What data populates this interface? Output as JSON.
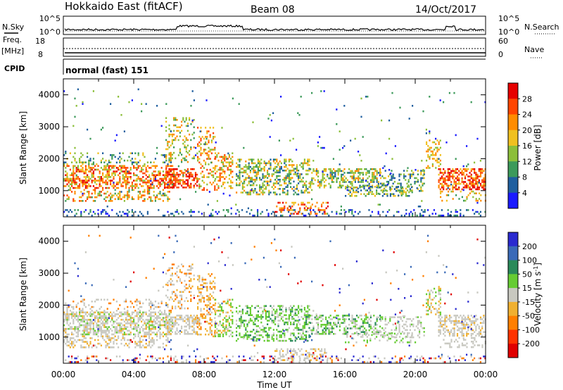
{
  "header": {
    "station": "Hokkaido East (fitACF)",
    "beam": "Beam 08",
    "date": "14/Oct/2017"
  },
  "status_panels": {
    "nsky_label": "N.Sky",
    "nsky_ticks": [
      "10^5",
      "10^0"
    ],
    "nsearch_label": "N.Search",
    "nsearch_ticks": [
      "10^5",
      "10^0"
    ],
    "freq_label_1": "Freq.",
    "freq_label_2": "[MHz]",
    "freq_ticks": [
      "18",
      "8"
    ],
    "nave_label": "Nave",
    "nave_ticks": [
      "60",
      "0"
    ],
    "cpid_label": "CPID",
    "cpid_value": "normal (fast) 151"
  },
  "chart_data": [
    {
      "type": "heatmap",
      "name": "power-panel",
      "ylabel": "Slant Range [km]",
      "ylim": [
        180,
        4500
      ],
      "yticks": [
        1000,
        2000,
        3000,
        4000
      ],
      "xlim": [
        0,
        24
      ],
      "colorbar": {
        "label": "Power [dB]",
        "ticks": [
          "28",
          "24",
          "20",
          "16",
          "12",
          "8",
          "4"
        ],
        "colors": [
          "#e60000",
          "#ff4500",
          "#ff8c00",
          "#f0c020",
          "#8cbf3a",
          "#3c9a5a",
          "#1f5f9f",
          "#1a1aff"
        ]
      }
    },
    {
      "type": "heatmap",
      "name": "velocity-panel",
      "ylabel": "Slant Range [km]",
      "ylim": [
        180,
        4500
      ],
      "yticks": [
        1000,
        2000,
        3000,
        4000
      ],
      "xlim": [
        0,
        24
      ],
      "xlabel": "Time UT",
      "xticks": [
        "00:00",
        "04:00",
        "08:00",
        "12:00",
        "16:00",
        "20:00",
        "00:00"
      ],
      "colorbar": {
        "label": "Velocity [m s",
        "label_sup": "-1",
        "label_end": "]",
        "ticks": [
          "200",
          "100",
          "50",
          "15",
          "-15",
          "-50",
          "-100",
          "-200"
        ],
        "colors": [
          "#2a2ad0",
          "#3a6ab8",
          "#2a8a5a",
          "#66cc33",
          "#c8c8c0",
          "#f0b030",
          "#ff7f00",
          "#ff3300",
          "#e00000"
        ]
      }
    }
  ]
}
